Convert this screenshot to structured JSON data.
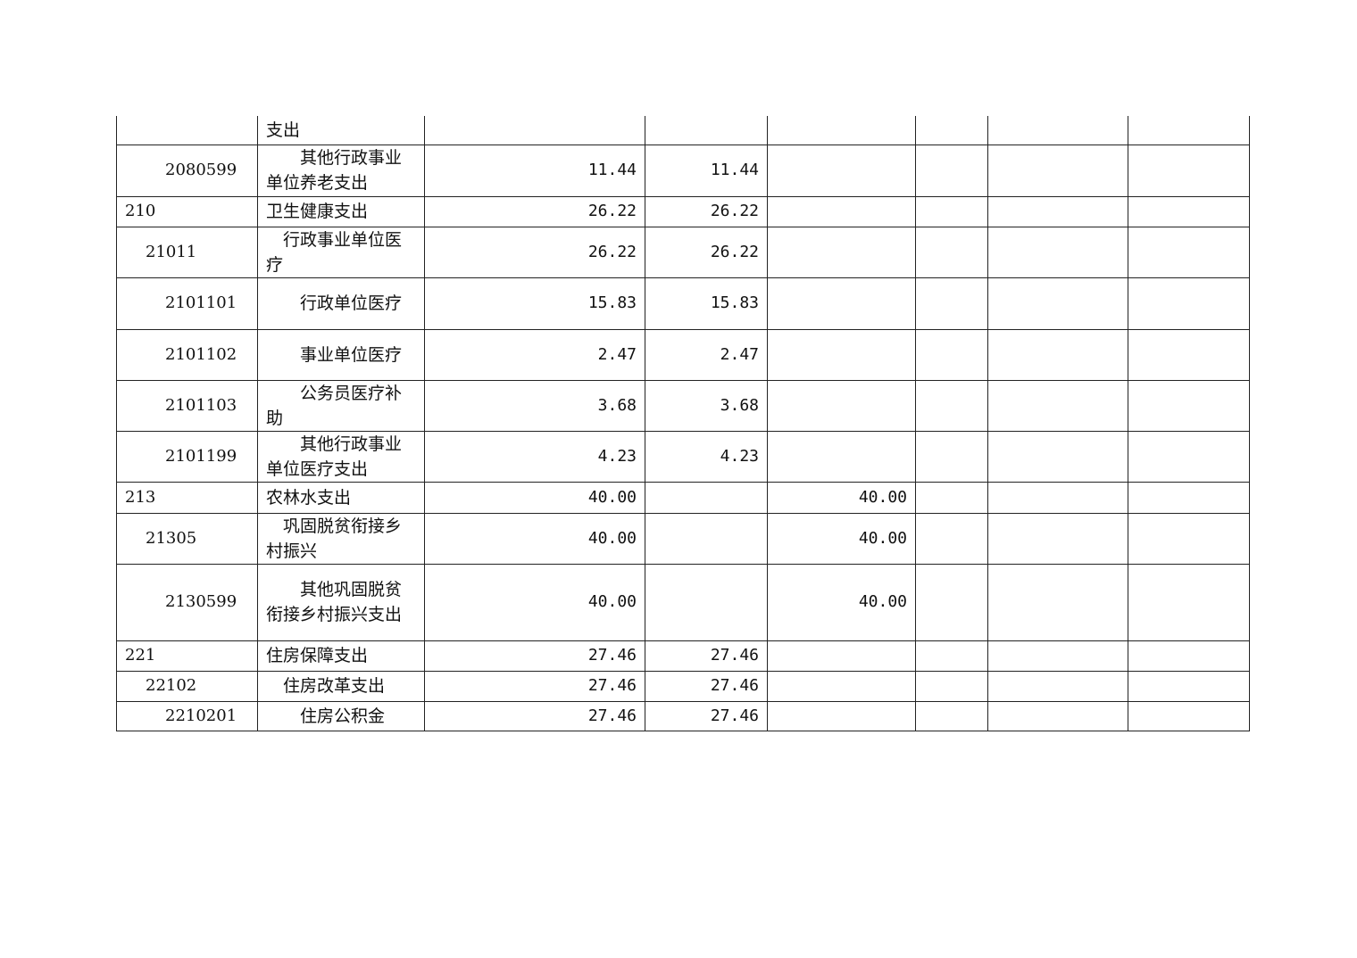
{
  "table": {
    "rows": [
      {
        "code": "",
        "level": 1,
        "name": "支出",
        "total": "",
        "basic": "",
        "project": "",
        "c6": "",
        "c7": "",
        "c8": ""
      },
      {
        "code": "2080599",
        "level": 3,
        "name": "其他行政事业单位养老支出",
        "total": "11.44",
        "basic": "11.44",
        "project": "",
        "c6": "",
        "c7": "",
        "c8": ""
      },
      {
        "code": "210",
        "level": 1,
        "name": "卫生健康支出",
        "total": "26.22",
        "basic": "26.22",
        "project": "",
        "c6": "",
        "c7": "",
        "c8": ""
      },
      {
        "code": "21011",
        "level": 2,
        "name": "行政事业单位医疗",
        "total": "26.22",
        "basic": "26.22",
        "project": "",
        "c6": "",
        "c7": "",
        "c8": ""
      },
      {
        "code": "2101101",
        "level": 3,
        "name": "行政单位医疗",
        "total": "15.83",
        "basic": "15.83",
        "project": "",
        "c6": "",
        "c7": "",
        "c8": ""
      },
      {
        "code": "2101102",
        "level": 3,
        "name": "事业单位医疗",
        "total": "2.47",
        "basic": "2.47",
        "project": "",
        "c6": "",
        "c7": "",
        "c8": ""
      },
      {
        "code": "2101103",
        "level": 3,
        "name": "公务员医疗补助",
        "total": "3.68",
        "basic": "3.68",
        "project": "",
        "c6": "",
        "c7": "",
        "c8": ""
      },
      {
        "code": "2101199",
        "level": 3,
        "name": "其他行政事业单位医疗支出",
        "total": "4.23",
        "basic": "4.23",
        "project": "",
        "c6": "",
        "c7": "",
        "c8": ""
      },
      {
        "code": "213",
        "level": 1,
        "name": "农林水支出",
        "total": "40.00",
        "basic": "",
        "project": "40.00",
        "c6": "",
        "c7": "",
        "c8": ""
      },
      {
        "code": "21305",
        "level": 2,
        "name": "巩固脱贫衔接乡村振兴",
        "total": "40.00",
        "basic": "",
        "project": "40.00",
        "c6": "",
        "c7": "",
        "c8": ""
      },
      {
        "code": "2130599",
        "level": 3,
        "name": "其他巩固脱贫衔接乡村振兴支出",
        "total": "40.00",
        "basic": "",
        "project": "40.00",
        "c6": "",
        "c7": "",
        "c8": ""
      },
      {
        "code": "221",
        "level": 1,
        "name": "住房保障支出",
        "total": "27.46",
        "basic": "27.46",
        "project": "",
        "c6": "",
        "c7": "",
        "c8": ""
      },
      {
        "code": "22102",
        "level": 2,
        "name": "住房改革支出",
        "total": "27.46",
        "basic": "27.46",
        "project": "",
        "c6": "",
        "c7": "",
        "c8": ""
      },
      {
        "code": "2210201",
        "level": 3,
        "name": "住房公积金",
        "total": "27.46",
        "basic": "27.46",
        "project": "",
        "c6": "",
        "c7": "",
        "c8": ""
      }
    ]
  }
}
